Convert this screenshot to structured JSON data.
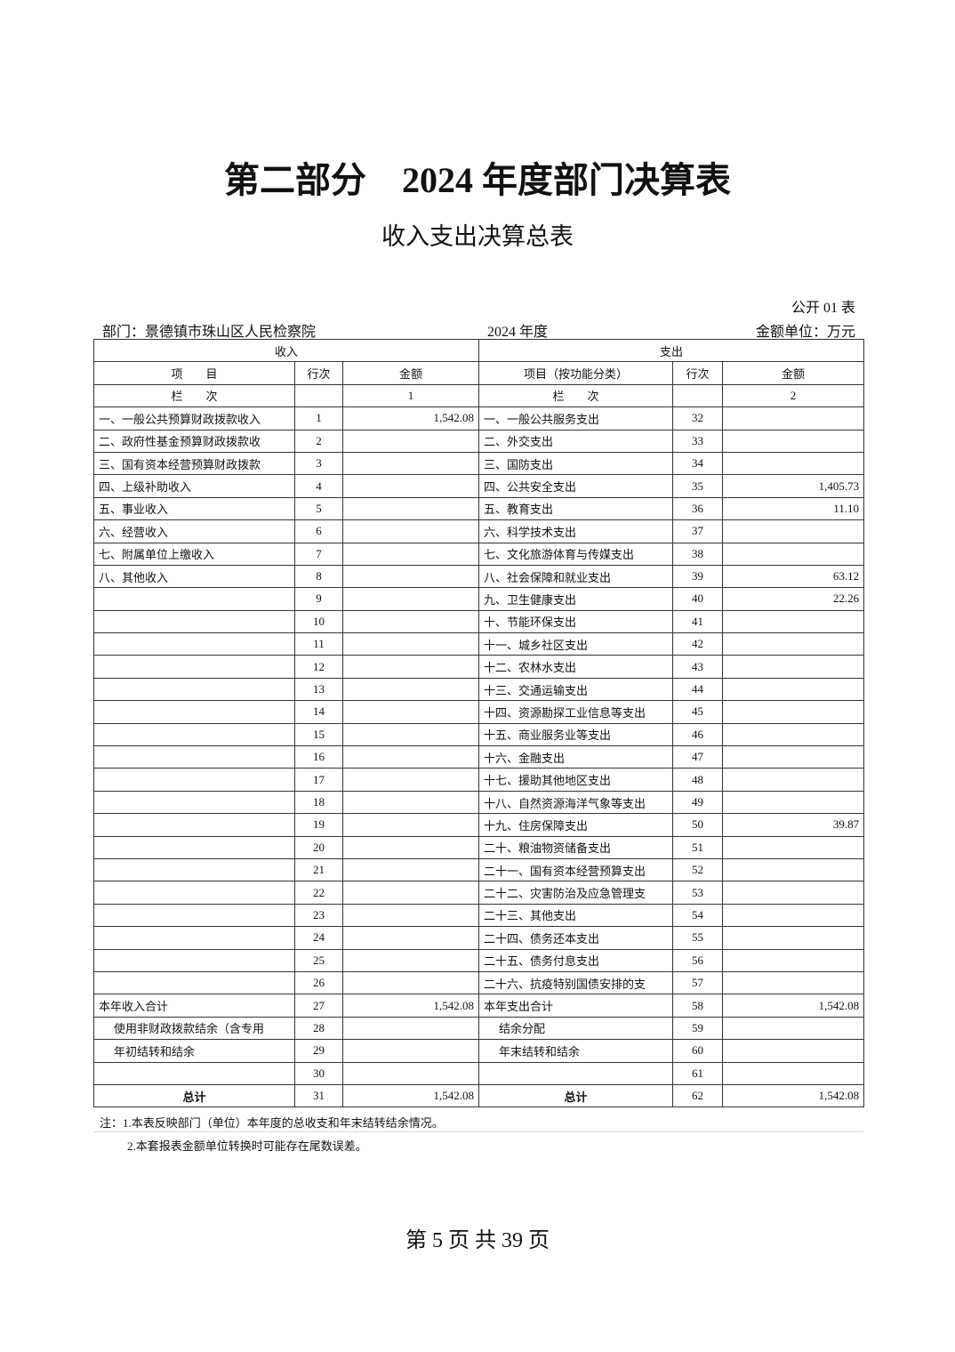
{
  "header": {
    "title": "第二部分　2024 年度部门决算表",
    "subtitle": "收入支出决算总表",
    "form_no": "公开 01 表",
    "department": "部门：景德镇市珠山区人民检察院",
    "year": "2024 年度",
    "unit": "金额单位：万元"
  },
  "table": {
    "groups": [
      "收入",
      "支出"
    ],
    "columns": [
      "项　　目",
      "行次",
      "金额",
      "项目（按功能分类）",
      "行次",
      "金额"
    ],
    "column_numbers": [
      "栏　　次",
      "1",
      "栏　　次",
      "2"
    ],
    "rows": [
      [
        "一、一般公共预算财政拨款收入",
        "1",
        "1,542.08",
        "一、一般公共服务支出",
        "32",
        null
      ],
      [
        "二、政府性基金预算财政拨款收",
        "2",
        null,
        "二、外交支出",
        "33",
        null
      ],
      [
        "三、国有资本经营预算财政拨款",
        "3",
        null,
        "三、国防支出",
        "34",
        null
      ],
      [
        "四、上级补助收入",
        "4",
        null,
        "四、公共安全支出",
        "35",
        "1,405.73"
      ],
      [
        "五、事业收入",
        "5",
        null,
        "五、教育支出",
        "36",
        "11.10"
      ],
      [
        "六、经营收入",
        "6",
        null,
        "六、科学技术支出",
        "37",
        null
      ],
      [
        "七、附属单位上缴收入",
        "7",
        null,
        "七、文化旅游体育与传媒支出",
        "38",
        null
      ],
      [
        "八、其他收入",
        "8",
        null,
        "八、社会保障和就业支出",
        "39",
        "63.12"
      ],
      [
        null,
        "9",
        null,
        "九、卫生健康支出",
        "40",
        "22.26"
      ],
      [
        null,
        "10",
        null,
        "十、节能环保支出",
        "41",
        null
      ],
      [
        null,
        "11",
        null,
        "十一、城乡社区支出",
        "42",
        null
      ],
      [
        null,
        "12",
        null,
        "十二、农林水支出",
        "43",
        null
      ],
      [
        null,
        "13",
        null,
        "十三、交通运输支出",
        "44",
        null
      ],
      [
        null,
        "14",
        null,
        "十四、资源勘探工业信息等支出",
        "45",
        null
      ],
      [
        null,
        "15",
        null,
        "十五、商业服务业等支出",
        "46",
        null
      ],
      [
        null,
        "16",
        null,
        "十六、金融支出",
        "47",
        null
      ],
      [
        null,
        "17",
        null,
        "十七、援助其他地区支出",
        "48",
        null
      ],
      [
        null,
        "18",
        null,
        "十八、自然资源海洋气象等支出",
        "49",
        null
      ],
      [
        null,
        "19",
        null,
        "十九、住房保障支出",
        "50",
        "39.87"
      ],
      [
        null,
        "20",
        null,
        "二十、粮油物资储备支出",
        "51",
        null
      ],
      [
        null,
        "21",
        null,
        "二十一、国有资本经营预算支出",
        "52",
        null
      ],
      [
        null,
        "22",
        null,
        "二十二、灾害防治及应急管理支",
        "53",
        null
      ],
      [
        null,
        "23",
        null,
        "二十三、其他支出",
        "54",
        null
      ],
      [
        null,
        "24",
        null,
        "二十四、债务还本支出",
        "55",
        null
      ],
      [
        null,
        "25",
        null,
        "二十五、债务付息支出",
        "56",
        null
      ],
      [
        null,
        "26",
        null,
        "二十六、抗疫特别国债安排的支",
        "57",
        null
      ],
      [
        "本年收入合计",
        "27",
        "1,542.08",
        "本年支出合计",
        "58",
        "1,542.08"
      ],
      [
        "使用非财政拨款结余（含专用",
        "28",
        null,
        "结余分配",
        "59",
        null
      ],
      [
        "年初结转和结余",
        "29",
        null,
        "年末结转和结余",
        "60",
        null
      ],
      [
        null,
        "30",
        null,
        null,
        "61",
        null
      ],
      [
        "总计",
        "31",
        "1,542.08",
        "总计",
        "62",
        "1,542.08"
      ]
    ]
  },
  "notes": [
    "注：1.本表反映部门（单位）本年度的总收支和年末结转结余情况。",
    "2.本套报表金额单位转换时可能存在尾数误差。"
  ],
  "footer": "第 5 页 共 39 页"
}
